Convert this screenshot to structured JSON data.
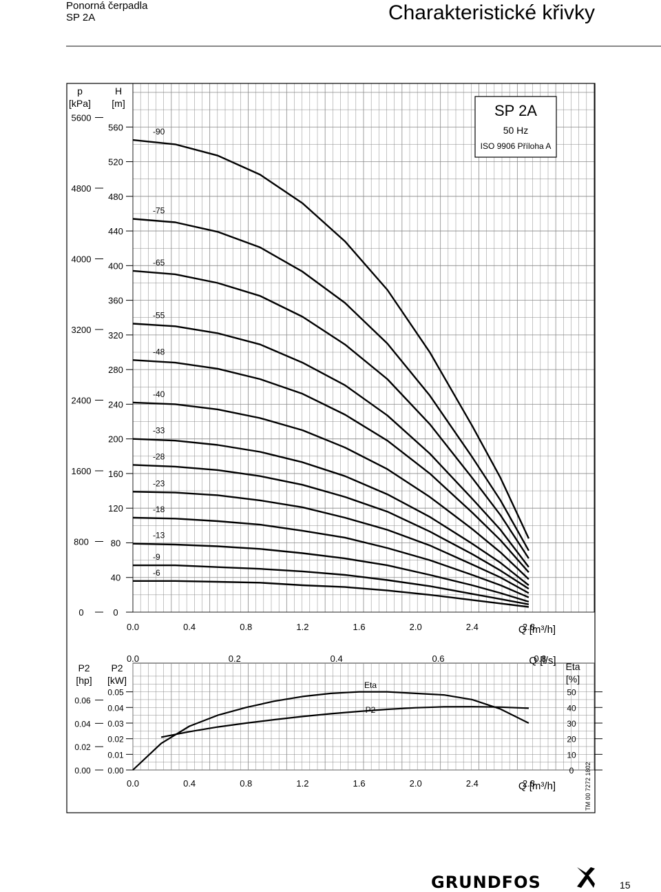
{
  "header": {
    "line1": "Ponorná čerpadla",
    "line2": "SP 2A",
    "section_title": "Charakteristické křivky"
  },
  "legend_box": {
    "title": "SP 2A",
    "freq": "50 Hz",
    "standard": "ISO 9906 Příloha A"
  },
  "footer": {
    "brand": "GRUNDFOS",
    "page_number": "15",
    "doc_code": "TM 00 7272 1802"
  },
  "chart_data": [
    {
      "type": "line",
      "title": "SP 2A",
      "axes_labels": {
        "left_outer": [
          "p",
          "[kPa]"
        ],
        "left_inner": [
          "H",
          "[m]"
        ],
        "bottom": "Q [m³/h]"
      },
      "x_ticks": [
        0.0,
        0.4,
        0.8,
        1.2,
        1.6,
        2.0,
        2.4,
        2.8
      ],
      "x_tick_labels": [
        "0.0",
        "0.4",
        "0.8",
        "1.2",
        "1.6",
        "2.0",
        "2.4",
        "2.8"
      ],
      "xlim": [
        0,
        3.0
      ],
      "h_ticks": [
        0,
        40,
        80,
        120,
        160,
        200,
        240,
        280,
        320,
        360,
        400,
        440,
        480,
        520,
        560
      ],
      "ylim": [
        0,
        600
      ],
      "p_ticks": [
        0,
        800,
        1600,
        2400,
        3200,
        4000,
        4800,
        5600
      ],
      "grid": true,
      "series": [
        {
          "name": "-90",
          "x": [
            0.0,
            0.3,
            0.6,
            0.9,
            1.2,
            1.5,
            1.8,
            2.1,
            2.4,
            2.6,
            2.8
          ],
          "y": [
            545,
            540,
            527,
            505,
            472,
            428,
            372,
            300,
            215,
            155,
            85
          ]
        },
        {
          "name": "-75",
          "x": [
            0.0,
            0.3,
            0.6,
            0.9,
            1.2,
            1.5,
            1.8,
            2.1,
            2.4,
            2.6,
            2.8
          ],
          "y": [
            454,
            450,
            439,
            421,
            393,
            357,
            310,
            250,
            179,
            129,
            71
          ]
        },
        {
          "name": "-65",
          "x": [
            0.0,
            0.3,
            0.6,
            0.9,
            1.2,
            1.5,
            1.8,
            2.1,
            2.4,
            2.6,
            2.8
          ],
          "y": [
            394,
            390,
            380,
            365,
            341,
            309,
            269,
            217,
            155,
            112,
            62
          ]
        },
        {
          "name": "-55",
          "x": [
            0.0,
            0.3,
            0.6,
            0.9,
            1.2,
            1.5,
            1.8,
            2.1,
            2.4,
            2.6,
            2.8
          ],
          "y": [
            333,
            330,
            322,
            309,
            288,
            262,
            227,
            183,
            131,
            95,
            52
          ]
        },
        {
          "name": "-48",
          "x": [
            0.0,
            0.3,
            0.6,
            0.9,
            1.2,
            1.5,
            1.8,
            2.1,
            2.4,
            2.6,
            2.8
          ],
          "y": [
            291,
            288,
            281,
            269,
            252,
            228,
            198,
            160,
            115,
            83,
            46
          ]
        },
        {
          "name": "-40",
          "x": [
            0.0,
            0.3,
            0.6,
            0.9,
            1.2,
            1.5,
            1.8,
            2.1,
            2.4,
            2.6,
            2.8
          ],
          "y": [
            242,
            240,
            234,
            224,
            210,
            190,
            165,
            133,
            96,
            69,
            38
          ]
        },
        {
          "name": "-33",
          "x": [
            0.0,
            0.3,
            0.6,
            0.9,
            1.2,
            1.5,
            1.8,
            2.1,
            2.4,
            2.6,
            2.8
          ],
          "y": [
            200,
            198,
            193,
            185,
            173,
            157,
            136,
            110,
            79,
            57,
            31
          ]
        },
        {
          "name": "-28",
          "x": [
            0.0,
            0.3,
            0.6,
            0.9,
            1.2,
            1.5,
            1.8,
            2.1,
            2.4,
            2.6,
            2.8
          ],
          "y": [
            170,
            168,
            164,
            157,
            147,
            133,
            116,
            93,
            67,
            48,
            27
          ]
        },
        {
          "name": "-23",
          "x": [
            0.0,
            0.3,
            0.6,
            0.9,
            1.2,
            1.5,
            1.8,
            2.1,
            2.4,
            2.6,
            2.8
          ],
          "y": [
            139,
            138,
            135,
            129,
            121,
            109,
            95,
            77,
            55,
            40,
            22
          ]
        },
        {
          "name": "-18",
          "x": [
            0.0,
            0.3,
            0.6,
            0.9,
            1.2,
            1.5,
            1.8,
            2.1,
            2.4,
            2.6,
            2.8
          ],
          "y": [
            109,
            108,
            105,
            101,
            94,
            86,
            74,
            60,
            43,
            31,
            17
          ]
        },
        {
          "name": "-13",
          "x": [
            0.0,
            0.3,
            0.6,
            0.9,
            1.2,
            1.5,
            1.8,
            2.1,
            2.4,
            2.6,
            2.8
          ],
          "y": [
            79,
            78,
            76,
            73,
            68,
            62,
            54,
            43,
            31,
            22,
            12
          ]
        },
        {
          "name": "-9",
          "x": [
            0.0,
            0.3,
            0.6,
            0.9,
            1.2,
            1.5,
            1.8,
            2.1,
            2.4,
            2.6,
            2.8
          ],
          "y": [
            54,
            54,
            52,
            50,
            47,
            43,
            37,
            30,
            21,
            15,
            9
          ]
        },
        {
          "name": "-6",
          "x": [
            0.0,
            0.3,
            0.6,
            0.9,
            1.2,
            1.5,
            1.8,
            2.1,
            2.4,
            2.6,
            2.8
          ],
          "y": [
            36,
            36,
            35,
            34,
            31,
            29,
            25,
            20,
            14,
            10,
            6
          ]
        }
      ]
    },
    {
      "type": "line",
      "axes_labels": {
        "left_outer": [
          "P2",
          "[hp]"
        ],
        "left_inner": [
          "P2",
          "[kW]"
        ],
        "right": [
          "Eta",
          "[%]"
        ],
        "top": "Q [l/s]",
        "bottom": "Q [m³/h]"
      },
      "x_ticks": [
        0.0,
        0.4,
        0.8,
        1.2,
        1.6,
        2.0,
        2.4,
        2.8
      ],
      "x_tick_labels": [
        "0.0",
        "0.4",
        "0.8",
        "1.2",
        "1.6",
        "2.0",
        "2.4",
        "2.8"
      ],
      "top_ticks": [
        0.0,
        0.2,
        0.4,
        0.6,
        0.8
      ],
      "top_tick_labels": [
        "0.0",
        "0.2",
        "0.4",
        "0.6",
        "0.8"
      ],
      "xlim": [
        0,
        3.0
      ],
      "kw_ticks": [
        "0.00",
        "0.01",
        "0.02",
        "0.03",
        "0.04",
        "0.05"
      ],
      "hp_ticks": [
        "0.00",
        "0.02",
        "0.04",
        "0.06"
      ],
      "eta_ticks": [
        "0",
        "10",
        "20",
        "30",
        "40",
        "50"
      ],
      "series": [
        {
          "name": "Eta",
          "axis": "eta",
          "x": [
            0.0,
            0.2,
            0.4,
            0.6,
            0.8,
            1.0,
            1.2,
            1.4,
            1.6,
            1.8,
            2.0,
            2.2,
            2.4,
            2.6,
            2.8
          ],
          "y": [
            0,
            17,
            28,
            35,
            40,
            44,
            47,
            49,
            50,
            50,
            49,
            48,
            45,
            39,
            30
          ]
        },
        {
          "name": "P2",
          "axis": "kw",
          "x": [
            0.2,
            0.4,
            0.6,
            0.8,
            1.0,
            1.2,
            1.4,
            1.6,
            1.8,
            2.0,
            2.2,
            2.4,
            2.6,
            2.8
          ],
          "y": [
            0.021,
            0.0245,
            0.0275,
            0.03,
            0.0322,
            0.0342,
            0.036,
            0.0375,
            0.0388,
            0.0398,
            0.0404,
            0.0405,
            0.0402,
            0.0395
          ]
        }
      ]
    }
  ]
}
